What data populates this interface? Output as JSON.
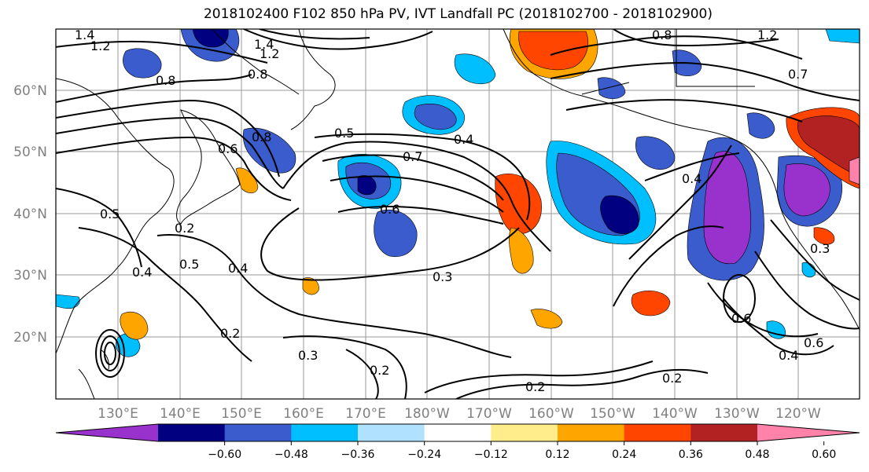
{
  "title": "2018102400 F102 850 hPa PV, IVT Landfall PC (2018102700 - 2018102900)",
  "lat_labels": [
    "60°N",
    "50°N",
    "40°N",
    "30°N",
    "20°N"
  ],
  "lon_labels": [
    "130°E",
    "140°E",
    "150°E",
    "160°E",
    "170°E",
    "180°W",
    "170°W",
    "160°W",
    "150°W",
    "140°W",
    "130°W",
    "120°W"
  ],
  "colorbar": {
    "colors": [
      "#9932cc",
      "#000080",
      "#3a5ccc",
      "#00bfff",
      "#b0e2ff",
      "#ffffff",
      "#ffec8b",
      "#ffa500",
      "#ff4500",
      "#b22222",
      "#ff82ab"
    ],
    "ticks": [
      "−0.60",
      "−0.48",
      "−0.36",
      "−0.24",
      "−0.12",
      "0.12",
      "0.24",
      "0.36",
      "0.48",
      "0.60"
    ]
  },
  "contour_labels": [
    "1.4",
    "1.2",
    "1.4",
    "1.2",
    "0.8",
    "0.8",
    "0.5",
    "0.7",
    "0.6",
    "0.4",
    "0.5",
    "0.4",
    "0.4",
    "0.5",
    "0.2",
    "0.3",
    "0.3",
    "0.2",
    "0.2",
    "0.2",
    "0.8",
    "1.2",
    "0.7",
    "0.4",
    "0.6",
    "0.6",
    "0.4",
    "0.3",
    "0.6",
    "0.8",
    "0.2"
  ]
}
